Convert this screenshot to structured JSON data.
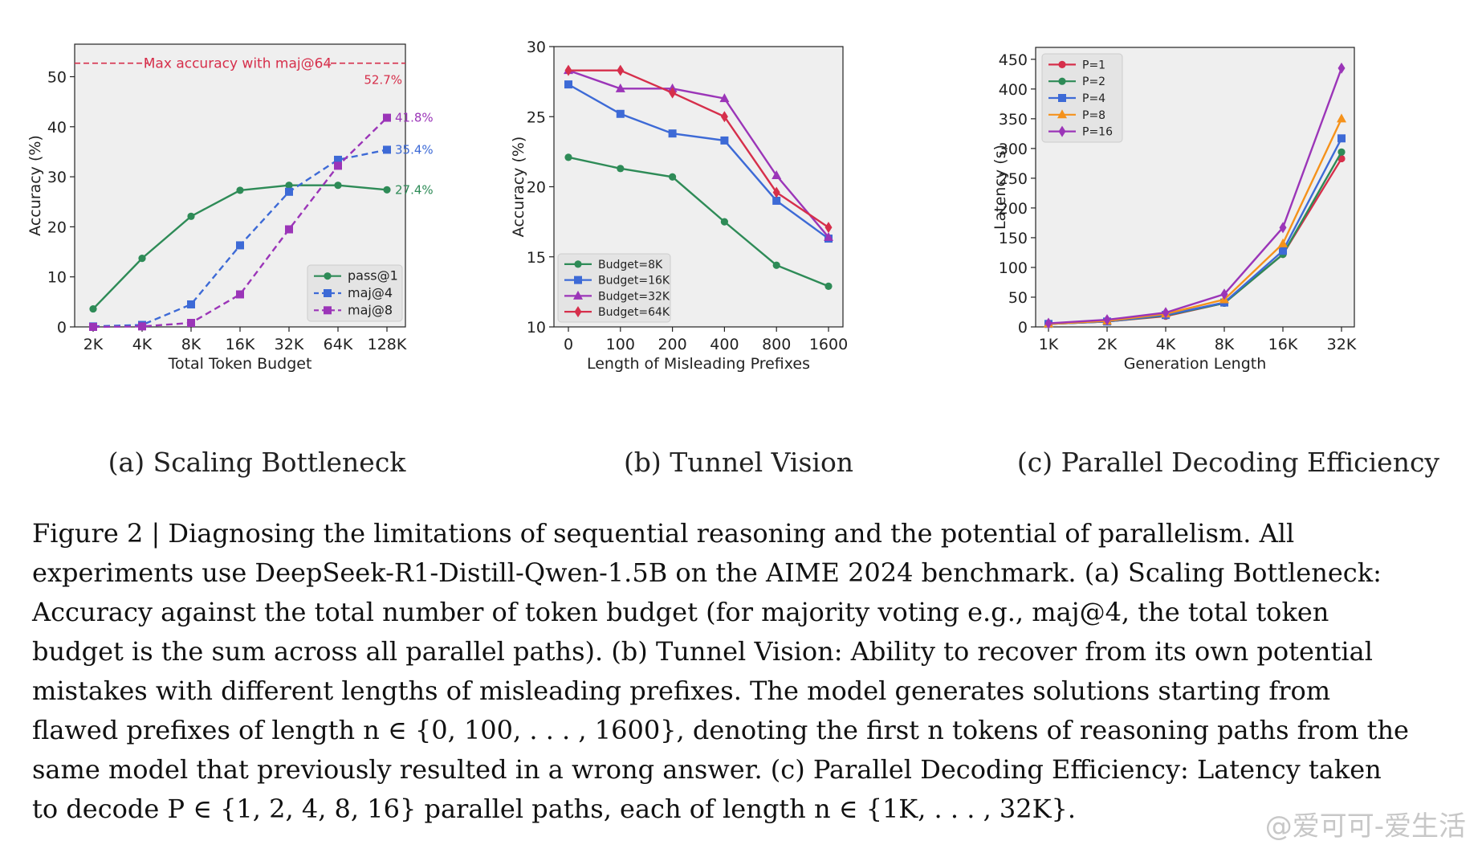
{
  "caption": {
    "line1": "Figure 2 | Diagnosing the limitations of sequential reasoning and the potential of parallelism. All",
    "line2": "experiments use DeepSeek-R1-Distill-Qwen-1.5B on the AIME 2024 benchmark. (a) Scaling Bottleneck:",
    "line3": "Accuracy against the total number of token budget (for majority voting e.g., maj@4, the total token",
    "line4": "budget is the sum across all parallel paths). (b) Tunnel Vision: Ability to recover from its own potential",
    "line5": "mistakes with different lengths of misleading prefixes. The model generates solutions starting from",
    "line6": "flawed prefixes of length n ∈ {0, 100, . . . , 1600}, denoting the first n tokens of reasoning paths from the",
    "line7": "same model that previously resulted in a wrong answer. (c) Parallel Decoding Efficiency: Latency taken",
    "line8": "to decode P ∈ {1, 2, 4, 8, 16} parallel paths, each of length n ∈ {1K, . . . , 32K}."
  },
  "watermark": "@爱可可-爱生活",
  "chart_data": [
    {
      "type": "line",
      "subcaption": "(a) Scaling Bottleneck",
      "xlabel": "Total Token Budget",
      "ylabel": "Accuracy (%)",
      "categories": [
        "2K",
        "4K",
        "8K",
        "16K",
        "32K",
        "64K",
        "128K"
      ],
      "ylim": [
        0,
        56.5
      ],
      "yticks": [
        0,
        10,
        20,
        30,
        40,
        50
      ],
      "grid": false,
      "legend_position": "lower-right",
      "reference_line": {
        "value": 52.7,
        "label": "Max accuracy with maj@64",
        "value_label": "52.7%",
        "color": "#d62f4b"
      },
      "series": [
        {
          "name": "pass@1",
          "color": "#2e8b57",
          "marker": "circle",
          "dashed": false,
          "x_index": [
            0,
            1,
            2,
            3,
            4,
            5,
            6
          ],
          "values": [
            3.6,
            13.7,
            22.1,
            27.3,
            28.3,
            28.3,
            27.4
          ],
          "end_label": "27.4%"
        },
        {
          "name": "maj@4",
          "color": "#3d6ad6",
          "marker": "square",
          "dashed": true,
          "x_index": [
            0,
            1,
            2,
            3,
            4,
            5,
            6
          ],
          "values": [
            0.1,
            0.4,
            4.5,
            16.3,
            27.0,
            33.4,
            35.4
          ],
          "end_label": "35.4%"
        },
        {
          "name": "maj@8",
          "color": "#9b35b8",
          "marker": "square",
          "dashed": true,
          "x_index": [
            0,
            1,
            2,
            3,
            4,
            5,
            6
          ],
          "values": [
            0.0,
            0.1,
            0.8,
            6.5,
            19.5,
            32.2,
            41.8
          ],
          "end_label": "41.8%"
        }
      ]
    },
    {
      "type": "line",
      "subcaption": "(b) Tunnel Vision",
      "xlabel": "Length of Misleading Prefixes",
      "ylabel": "Accuracy (%)",
      "categories": [
        "0",
        "100",
        "200",
        "400",
        "800",
        "1600"
      ],
      "ylim": [
        10,
        30
      ],
      "yticks": [
        10,
        15,
        20,
        25,
        30
      ],
      "grid": false,
      "legend_position": "lower-left",
      "series": [
        {
          "name": "Budget=8K",
          "color": "#2e8b57",
          "marker": "circle",
          "values": [
            22.1,
            21.3,
            20.7,
            17.5,
            14.4,
            12.9
          ]
        },
        {
          "name": "Budget=16K",
          "color": "#3d6ad6",
          "marker": "square",
          "values": [
            27.3,
            25.2,
            23.8,
            23.3,
            19.0,
            16.3
          ]
        },
        {
          "name": "Budget=32K",
          "color": "#9b35b8",
          "marker": "triangle",
          "values": [
            28.3,
            27.0,
            27.0,
            26.3,
            20.8,
            16.4
          ]
        },
        {
          "name": "Budget=64K",
          "color": "#d62f4b",
          "marker": "diamond",
          "values": [
            28.3,
            28.3,
            26.7,
            25.0,
            19.6,
            17.1
          ]
        }
      ]
    },
    {
      "type": "line",
      "subcaption": "(c) Parallel Decoding Efficiency",
      "xlabel": "Generation Length",
      "ylabel": "Latency (s)",
      "categories": [
        "1K",
        "2K",
        "4K",
        "8K",
        "16K",
        "32K"
      ],
      "ylim": [
        0,
        470
      ],
      "yticks": [
        0,
        50,
        100,
        150,
        200,
        250,
        300,
        350,
        400,
        450
      ],
      "grid": false,
      "legend_position": "upper-left",
      "series": [
        {
          "name": "P=1",
          "color": "#d62f4b",
          "marker": "circle",
          "values": [
            5,
            9,
            18,
            40,
            122,
            283
          ]
        },
        {
          "name": "P=2",
          "color": "#2e8b57",
          "marker": "circle",
          "values": [
            5,
            9,
            19,
            40,
            122,
            294
          ]
        },
        {
          "name": "P=4",
          "color": "#3d6ad6",
          "marker": "square",
          "values": [
            5,
            9,
            20,
            41,
            128,
            317
          ]
        },
        {
          "name": "P=8",
          "color": "#f5921b",
          "marker": "triangle",
          "values": [
            5,
            10,
            22,
            46,
            140,
            350
          ]
        },
        {
          "name": "P=16",
          "color": "#9b35b8",
          "marker": "diamond",
          "values": [
            6,
            12,
            24,
            55,
            167,
            435
          ]
        }
      ]
    }
  ]
}
